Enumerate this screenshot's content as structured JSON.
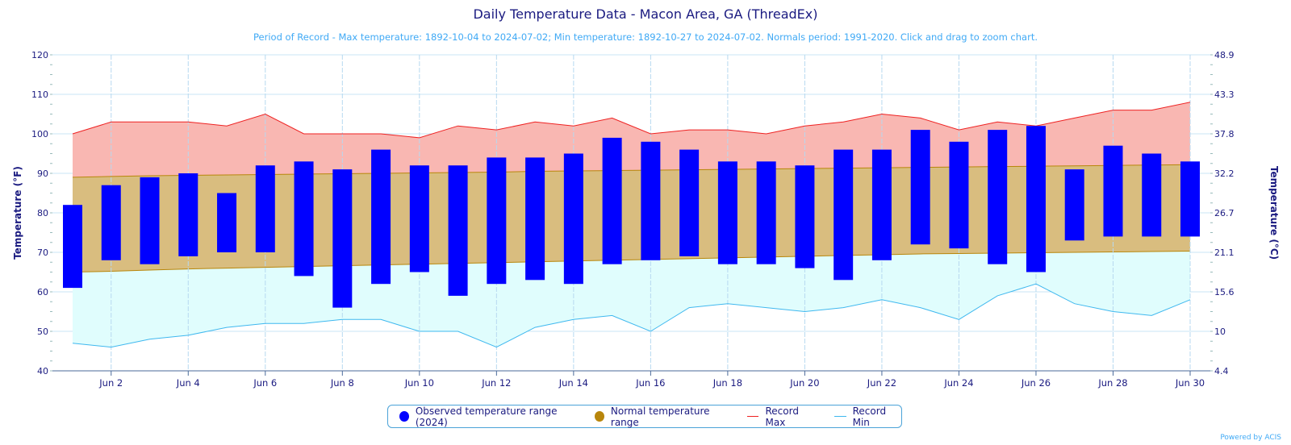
{
  "chart_data": {
    "type": "bar",
    "title": "Daily Temperature Data - Macon Area, GA (ThreadEx)",
    "subtitle": "Period of Record - Max temperature: 1892-10-04 to 2024-07-02; Min temperature: 1892-10-27 to 2024-07-02. Normals period: 1991-2020. Click and drag to zoom chart.",
    "ylabel": "Temperature (°F)",
    "ylabel_right": "Temperature (°C)",
    "ylim": [
      40,
      120
    ],
    "yticks": [
      40,
      50,
      60,
      70,
      80,
      90,
      100,
      110,
      120
    ],
    "yticks_right": [
      "4.4",
      "10",
      "15.6",
      "21.1",
      "26.7",
      "32.2",
      "37.8",
      "43.3",
      "48.9"
    ],
    "xlim": [
      1,
      30
    ],
    "xtick_days": [
      2,
      4,
      6,
      8,
      10,
      12,
      14,
      16,
      18,
      20,
      22,
      24,
      26,
      28,
      30
    ],
    "xtick_labels": [
      "Jun 2",
      "Jun 4",
      "Jun 6",
      "Jun 8",
      "Jun 10",
      "Jun 12",
      "Jun 14",
      "Jun 16",
      "Jun 18",
      "Jun 20",
      "Jun 22",
      "Jun 24",
      "Jun 26",
      "Jun 28",
      "Jun 30"
    ],
    "grid": true,
    "legend_position": "bottom-center",
    "days": [
      1,
      2,
      3,
      4,
      5,
      6,
      7,
      8,
      9,
      10,
      11,
      12,
      13,
      14,
      15,
      16,
      17,
      18,
      19,
      20,
      21,
      22,
      23,
      24,
      25,
      26,
      27,
      28,
      29,
      30
    ],
    "series": [
      {
        "name": "Observed temperature range (2024)",
        "color": "#0000ff",
        "low": [
          61,
          68,
          67,
          69,
          70,
          70,
          64,
          56,
          62,
          65,
          59,
          62,
          63,
          62,
          67,
          68,
          69,
          67,
          67,
          66,
          63,
          68,
          72,
          71,
          67,
          65,
          73,
          74,
          74,
          74
        ],
        "high": [
          82,
          87,
          89,
          90,
          85,
          92,
          93,
          91,
          96,
          92,
          92,
          94,
          94,
          95,
          99,
          98,
          96,
          93,
          93,
          92,
          96,
          96,
          101,
          98,
          101,
          102,
          91,
          97,
          95,
          93
        ]
      },
      {
        "name": "Normal temperature range",
        "color": "#b8860b",
        "low": [
          65,
          65.2,
          65.5,
          65.8,
          66,
          66.2,
          66.4,
          66.6,
          66.8,
          67,
          67.2,
          67.4,
          67.6,
          67.8,
          68,
          68.2,
          68.4,
          68.6,
          68.8,
          69,
          69.2,
          69.4,
          69.6,
          69.7,
          69.8,
          69.9,
          70,
          70.1,
          70.2,
          70.3
        ],
        "high": [
          89,
          89.2,
          89.4,
          89.5,
          89.6,
          89.7,
          89.8,
          89.9,
          90,
          90.1,
          90.2,
          90.3,
          90.5,
          90.6,
          90.7,
          90.8,
          90.9,
          91,
          91.1,
          91.2,
          91.3,
          91.4,
          91.5,
          91.6,
          91.7,
          91.8,
          91.9,
          92,
          92.1,
          92.2
        ]
      },
      {
        "name": "Record Max",
        "color": "#ee2222",
        "values": [
          100,
          103,
          103,
          103,
          102,
          105,
          100,
          100,
          100,
          99,
          102,
          101,
          103,
          102,
          104,
          100,
          101,
          101,
          100,
          102,
          103,
          105,
          104,
          101,
          103,
          102,
          104,
          106,
          106,
          108
        ]
      },
      {
        "name": "Record Min",
        "color": "#3fb8ef",
        "values": [
          47,
          46,
          48,
          49,
          51,
          52,
          52,
          53,
          53,
          50,
          50,
          46,
          51,
          53,
          54,
          50,
          56,
          57,
          56,
          55,
          56,
          58,
          56,
          53,
          59,
          62,
          57,
          55,
          54,
          58
        ]
      }
    ]
  },
  "credit": "Powered by ACIS"
}
